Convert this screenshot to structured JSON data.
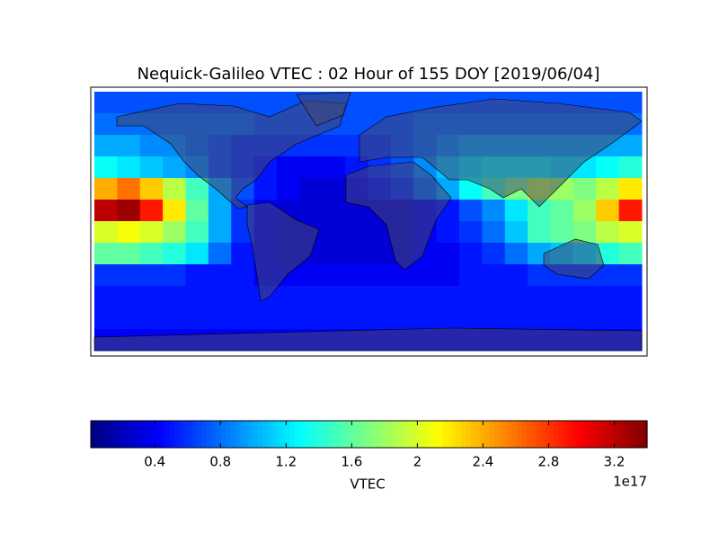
{
  "chart_data": {
    "type": "heatmap",
    "title": "Nequick-Galileo VTEC : 02 Hour of 155 DOY [2019/06/04]",
    "colormap": "jet",
    "x": [
      -172.5,
      -157.5,
      -142.5,
      -127.5,
      -112.5,
      -97.5,
      -82.5,
      -67.5,
      -52.5,
      -37.5,
      -22.5,
      -7.5,
      7.5,
      22.5,
      37.5,
      52.5,
      67.5,
      82.5,
      97.5,
      112.5,
      127.5,
      142.5,
      157.5,
      172.5
    ],
    "y": [
      82.5,
      67.5,
      52.5,
      37.5,
      22.5,
      7.5,
      -7.5,
      -22.5,
      -37.5,
      -52.5,
      -67.5,
      -82.5
    ],
    "xlim": [
      -180,
      180
    ],
    "ylim": [
      -90,
      90
    ],
    "values": [
      [
        0.7,
        0.7,
        0.7,
        0.7,
        0.7,
        0.7,
        0.7,
        0.7,
        0.7,
        0.7,
        0.7,
        0.7,
        0.7,
        0.7,
        0.7,
        0.7,
        0.7,
        0.7,
        0.7,
        0.7,
        0.7,
        0.7,
        0.7,
        0.7
      ],
      [
        0.8,
        0.8,
        0.8,
        0.8,
        0.8,
        0.8,
        0.8,
        0.7,
        0.7,
        0.7,
        0.7,
        0.7,
        0.7,
        0.7,
        0.8,
        0.8,
        0.8,
        0.8,
        0.8,
        0.8,
        0.8,
        0.8,
        0.8,
        0.8
      ],
      [
        1.0,
        1.0,
        0.9,
        0.9,
        0.8,
        0.7,
        0.6,
        0.6,
        0.6,
        0.6,
        0.6,
        0.6,
        0.6,
        0.7,
        0.8,
        0.9,
        1.0,
        1.0,
        1.0,
        1.0,
        1.0,
        1.0,
        1.0,
        1.0
      ],
      [
        1.3,
        1.2,
        1.1,
        1.0,
        0.9,
        0.7,
        0.6,
        0.5,
        0.4,
        0.4,
        0.4,
        0.5,
        0.6,
        0.7,
        0.9,
        1.1,
        1.2,
        1.3,
        1.3,
        1.3,
        1.2,
        1.2,
        1.3,
        1.4
      ],
      [
        2.4,
        2.6,
        2.3,
        1.9,
        1.5,
        1.0,
        0.7,
        0.5,
        0.4,
        0.3,
        0.3,
        0.4,
        0.5,
        0.6,
        0.8,
        1.0,
        1.3,
        1.5,
        1.7,
        1.9,
        1.8,
        1.7,
        1.9,
        2.2
      ],
      [
        3.2,
        3.3,
        2.9,
        2.2,
        1.6,
        1.0,
        0.6,
        0.4,
        0.3,
        0.3,
        0.3,
        0.3,
        0.3,
        0.3,
        0.4,
        0.5,
        0.7,
        0.9,
        1.2,
        1.5,
        1.6,
        1.8,
        2.3,
        2.9
      ],
      [
        2.0,
        2.1,
        2.0,
        1.8,
        1.5,
        1.0,
        0.6,
        0.4,
        0.3,
        0.3,
        0.3,
        0.3,
        0.3,
        0.3,
        0.4,
        0.5,
        0.6,
        0.8,
        1.1,
        1.5,
        1.6,
        1.7,
        1.9,
        2.0
      ],
      [
        1.6,
        1.6,
        1.5,
        1.4,
        1.2,
        0.8,
        0.5,
        0.4,
        0.3,
        0.3,
        0.3,
        0.3,
        0.3,
        0.3,
        0.4,
        0.4,
        0.5,
        0.6,
        0.8,
        1.0,
        1.1,
        1.2,
        1.4,
        1.5
      ],
      [
        0.6,
        0.6,
        0.6,
        0.6,
        0.5,
        0.5,
        0.5,
        0.4,
        0.4,
        0.4,
        0.4,
        0.4,
        0.4,
        0.4,
        0.4,
        0.4,
        0.5,
        0.5,
        0.5,
        0.6,
        0.6,
        0.6,
        0.6,
        0.6
      ],
      [
        0.5,
        0.5,
        0.5,
        0.5,
        0.5,
        0.5,
        0.5,
        0.5,
        0.5,
        0.5,
        0.5,
        0.5,
        0.5,
        0.5,
        0.5,
        0.5,
        0.5,
        0.5,
        0.5,
        0.5,
        0.5,
        0.5,
        0.5,
        0.5
      ],
      [
        0.5,
        0.5,
        0.5,
        0.5,
        0.5,
        0.5,
        0.5,
        0.5,
        0.5,
        0.5,
        0.5,
        0.5,
        0.5,
        0.5,
        0.5,
        0.5,
        0.5,
        0.5,
        0.5,
        0.5,
        0.5,
        0.5,
        0.5,
        0.5
      ],
      [
        0.4,
        0.4,
        0.4,
        0.4,
        0.4,
        0.4,
        0.4,
        0.4,
        0.4,
        0.4,
        0.4,
        0.4,
        0.4,
        0.4,
        0.4,
        0.4,
        0.4,
        0.4,
        0.4,
        0.4,
        0.4,
        0.4,
        0.4,
        0.4
      ]
    ],
    "clim": [
      0.01,
      3.4
    ],
    "cticks": [
      0.4,
      0.8,
      1.2,
      1.6,
      2.0,
      2.4,
      2.8,
      3.2
    ],
    "colorbar_label": "VTEC",
    "colorbar_offset": "1e17"
  }
}
